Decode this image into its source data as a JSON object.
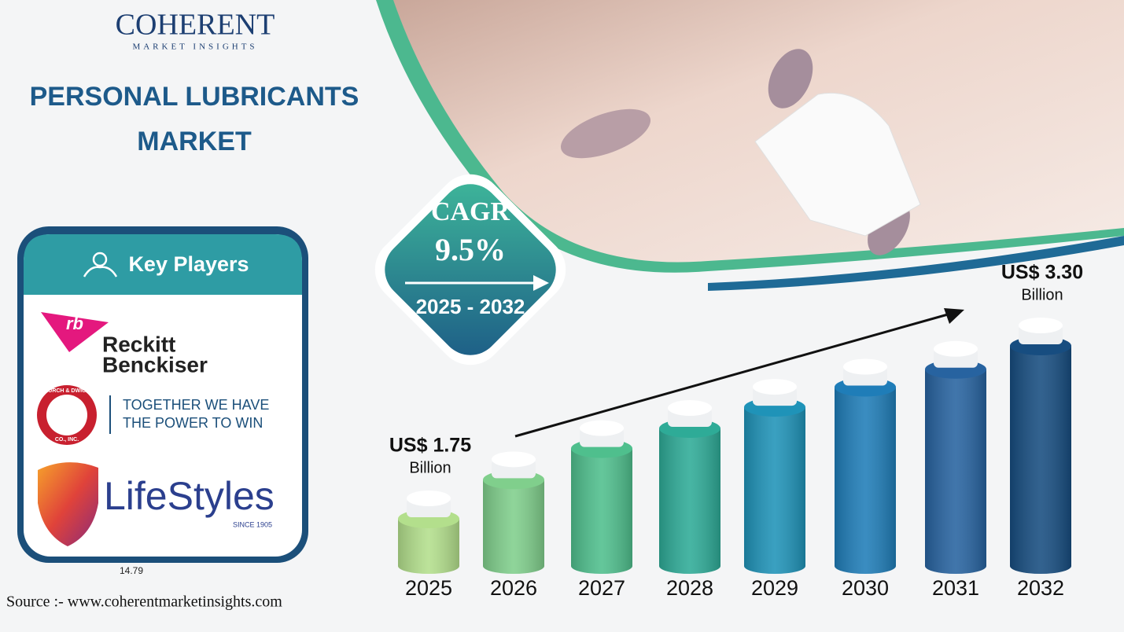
{
  "header": {
    "logo_name": "COHERENT",
    "logo_sub": "MARKET INSIGHTS",
    "title_lines": [
      "PERSONAL LUBRICANTS",
      "MARKET"
    ]
  },
  "key_players": {
    "heading": "Key Players",
    "rb_mark": "rb",
    "rb_lines": [
      "Reckitt",
      "Benckiser"
    ],
    "cd_badge_top": "CHURCH & DWIGHT",
    "cd_badge_bottom": "CO., INC.",
    "cd_lines": [
      "TOGETHER WE HAVE",
      "THE POWER TO WIN"
    ],
    "ls_name": "LifeStyles",
    "ls_since": "SINCE 1905"
  },
  "cagr": {
    "label": "CAGR",
    "value": "9.5%",
    "period": "2025 - 2032"
  },
  "chart_data": {
    "type": "bar",
    "categories": [
      "2025",
      "2026",
      "2027",
      "2028",
      "2029",
      "2030",
      "2031",
      "2032"
    ],
    "values": [
      1.75,
      2.1,
      2.38,
      2.56,
      2.75,
      2.93,
      3.09,
      3.3
    ],
    "value_labels": [
      "US$  1.75",
      null,
      null,
      null,
      null,
      null,
      null,
      "US$ 3.30"
    ],
    "unit": "Billion",
    "colors": [
      "#b3df8c",
      "#80cf8c",
      "#4fbf8d",
      "#2eab97",
      "#1f93b8",
      "#1f7db8",
      "#2763a0",
      "#174d80"
    ]
  },
  "stray_text": "14.79",
  "source": "Source :- www.coherentmarketinsights.com"
}
